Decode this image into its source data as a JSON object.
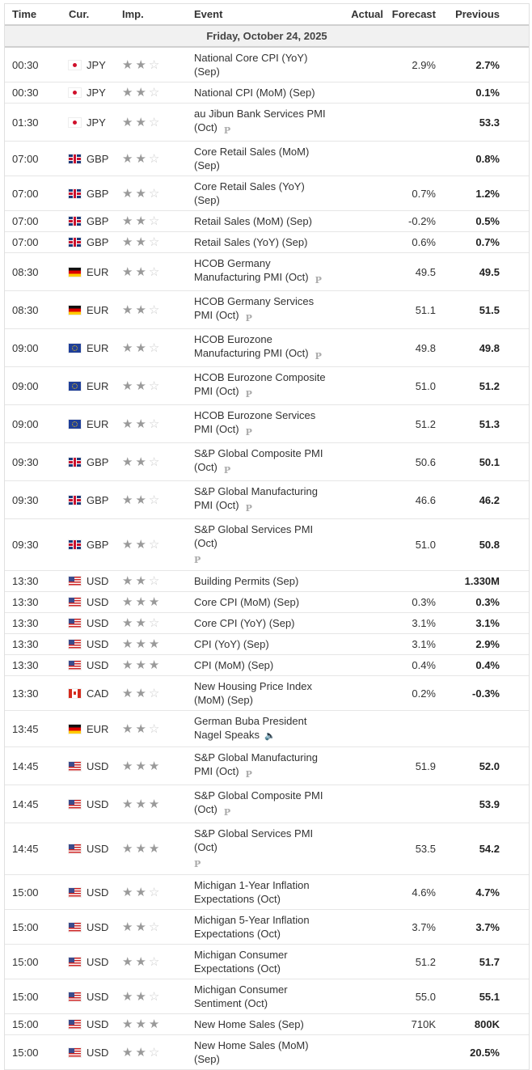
{
  "headers": {
    "time": "Time",
    "cur": "Cur.",
    "imp": "Imp.",
    "event": "Event",
    "actual": "Actual",
    "forecast": "Forecast",
    "previous": "Previous"
  },
  "date": "Friday, October 24, 2025",
  "icons": {
    "star_on": "★",
    "star_off": "☆",
    "prelim": "P",
    "speech": "🔈"
  },
  "rows": [
    {
      "time": "00:30",
      "flag": "jp",
      "cur": "JPY",
      "imp": 2,
      "event": "National Core CPI (YoY) (Sep)",
      "actual": "",
      "forecast": "2.9%",
      "previous": "2.7%"
    },
    {
      "time": "00:30",
      "flag": "jp",
      "cur": "JPY",
      "imp": 2,
      "event": "National CPI (MoM) (Sep)",
      "actual": "",
      "forecast": "",
      "previous": "0.1%"
    },
    {
      "time": "01:30",
      "flag": "jp",
      "cur": "JPY",
      "imp": 2,
      "event": "au Jibun Bank Services PMI (Oct)",
      "tag": "prelim",
      "actual": "",
      "forecast": "",
      "previous": "53.3"
    },
    {
      "time": "07:00",
      "flag": "gb",
      "cur": "GBP",
      "imp": 2,
      "event": "Core Retail Sales (MoM) (Sep)",
      "actual": "",
      "forecast": "",
      "previous": "0.8%"
    },
    {
      "time": "07:00",
      "flag": "gb",
      "cur": "GBP",
      "imp": 2,
      "event": "Core Retail Sales (YoY) (Sep)",
      "actual": "",
      "forecast": "0.7%",
      "previous": "1.2%"
    },
    {
      "time": "07:00",
      "flag": "gb",
      "cur": "GBP",
      "imp": 2,
      "event": "Retail Sales (MoM) (Sep)",
      "actual": "",
      "forecast": "-0.2%",
      "previous": "0.5%"
    },
    {
      "time": "07:00",
      "flag": "gb",
      "cur": "GBP",
      "imp": 2,
      "event": "Retail Sales (YoY) (Sep)",
      "actual": "",
      "forecast": "0.6%",
      "previous": "0.7%"
    },
    {
      "time": "08:30",
      "flag": "de",
      "cur": "EUR",
      "imp": 2,
      "event": "HCOB Germany Manufacturing PMI (Oct)",
      "tag": "prelim",
      "actual": "",
      "forecast": "49.5",
      "previous": "49.5"
    },
    {
      "time": "08:30",
      "flag": "de",
      "cur": "EUR",
      "imp": 2,
      "event": "HCOB Germany Services PMI (Oct)",
      "tag": "prelim",
      "actual": "",
      "forecast": "51.1",
      "previous": "51.5"
    },
    {
      "time": "09:00",
      "flag": "eu",
      "cur": "EUR",
      "imp": 2,
      "event": "HCOB Eurozone Manufacturing PMI (Oct)",
      "tag": "prelim",
      "actual": "",
      "forecast": "49.8",
      "previous": "49.8"
    },
    {
      "time": "09:00",
      "flag": "eu",
      "cur": "EUR",
      "imp": 2,
      "event": "HCOB Eurozone Composite PMI (Oct)",
      "tag": "prelim",
      "actual": "",
      "forecast": "51.0",
      "previous": "51.2"
    },
    {
      "time": "09:00",
      "flag": "eu",
      "cur": "EUR",
      "imp": 2,
      "event": "HCOB Eurozone Services PMI (Oct)",
      "tag": "prelim",
      "actual": "",
      "forecast": "51.2",
      "previous": "51.3"
    },
    {
      "time": "09:30",
      "flag": "gb",
      "cur": "GBP",
      "imp": 2,
      "event": "S&P Global Composite PMI (Oct)",
      "tag": "prelim",
      "actual": "",
      "forecast": "50.6",
      "previous": "50.1"
    },
    {
      "time": "09:30",
      "flag": "gb",
      "cur": "GBP",
      "imp": 2,
      "event": "S&P Global Manufacturing PMI (Oct)",
      "tag": "prelim",
      "actual": "",
      "forecast": "46.6",
      "previous": "46.2"
    },
    {
      "time": "09:30",
      "flag": "gb",
      "cur": "GBP",
      "imp": 2,
      "event": "S&P Global Services PMI (Oct)",
      "tag": "prelim",
      "wrap": true,
      "actual": "",
      "forecast": "51.0",
      "previous": "50.8"
    },
    {
      "time": "13:30",
      "flag": "us",
      "cur": "USD",
      "imp": 2,
      "event": "Building Permits (Sep)",
      "actual": "",
      "forecast": "",
      "previous": "1.330M"
    },
    {
      "time": "13:30",
      "flag": "us",
      "cur": "USD",
      "imp": 3,
      "event": "Core CPI (MoM) (Sep)",
      "actual": "",
      "forecast": "0.3%",
      "previous": "0.3%"
    },
    {
      "time": "13:30",
      "flag": "us",
      "cur": "USD",
      "imp": 2,
      "event": "Core CPI (YoY) (Sep)",
      "actual": "",
      "forecast": "3.1%",
      "previous": "3.1%"
    },
    {
      "time": "13:30",
      "flag": "us",
      "cur": "USD",
      "imp": 3,
      "event": "CPI (YoY) (Sep)",
      "actual": "",
      "forecast": "3.1%",
      "previous": "2.9%"
    },
    {
      "time": "13:30",
      "flag": "us",
      "cur": "USD",
      "imp": 3,
      "event": "CPI (MoM) (Sep)",
      "actual": "",
      "forecast": "0.4%",
      "previous": "0.4%"
    },
    {
      "time": "13:30",
      "flag": "ca",
      "cur": "CAD",
      "imp": 2,
      "event": "New Housing Price Index (MoM) (Sep)",
      "actual": "",
      "forecast": "0.2%",
      "previous": "-0.3%"
    },
    {
      "time": "13:45",
      "flag": "de",
      "cur": "EUR",
      "imp": 2,
      "event": "German Buba President Nagel Speaks",
      "tag": "speech",
      "actual": "",
      "forecast": "",
      "previous": ""
    },
    {
      "time": "14:45",
      "flag": "us",
      "cur": "USD",
      "imp": 3,
      "event": "S&P Global Manufacturing PMI (Oct)",
      "tag": "prelim",
      "actual": "",
      "forecast": "51.9",
      "previous": "52.0"
    },
    {
      "time": "14:45",
      "flag": "us",
      "cur": "USD",
      "imp": 3,
      "event": "S&P Global Composite PMI (Oct)",
      "tag": "prelim",
      "actual": "",
      "forecast": "",
      "previous": "53.9"
    },
    {
      "time": "14:45",
      "flag": "us",
      "cur": "USD",
      "imp": 3,
      "event": "S&P Global Services PMI (Oct)",
      "tag": "prelim",
      "wrap": true,
      "actual": "",
      "forecast": "53.5",
      "previous": "54.2"
    },
    {
      "time": "15:00",
      "flag": "us",
      "cur": "USD",
      "imp": 2,
      "event": "Michigan 1-Year Inflation Expectations (Oct)",
      "actual": "",
      "forecast": "4.6%",
      "previous": "4.7%"
    },
    {
      "time": "15:00",
      "flag": "us",
      "cur": "USD",
      "imp": 2,
      "event": "Michigan 5-Year Inflation Expectations (Oct)",
      "actual": "",
      "forecast": "3.7%",
      "previous": "3.7%"
    },
    {
      "time": "15:00",
      "flag": "us",
      "cur": "USD",
      "imp": 2,
      "event": "Michigan Consumer Expectations (Oct)",
      "actual": "",
      "forecast": "51.2",
      "previous": "51.7"
    },
    {
      "time": "15:00",
      "flag": "us",
      "cur": "USD",
      "imp": 2,
      "event": "Michigan Consumer Sentiment (Oct)",
      "actual": "",
      "forecast": "55.0",
      "previous": "55.1"
    },
    {
      "time": "15:00",
      "flag": "us",
      "cur": "USD",
      "imp": 3,
      "event": "New Home Sales (Sep)",
      "actual": "",
      "forecast": "710K",
      "previous": "800K"
    },
    {
      "time": "15:00",
      "flag": "us",
      "cur": "USD",
      "imp": 2,
      "event": "New Home Sales (MoM) (Sep)",
      "actual": "",
      "forecast": "",
      "previous": "20.5%"
    }
  ]
}
